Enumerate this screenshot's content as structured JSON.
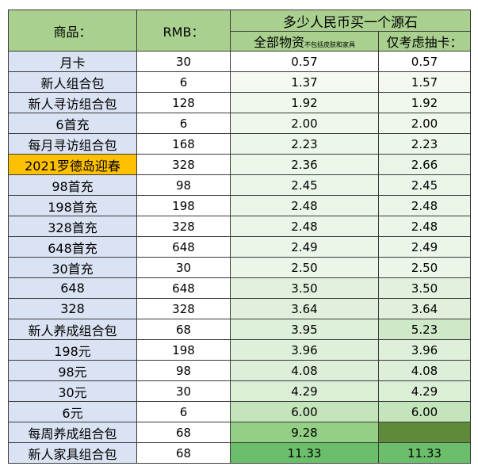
{
  "header": {
    "item_col": "商品：",
    "rmb_col": "RMB：",
    "group_title": "多少人民币买一个源石",
    "col_all": "全部物资",
    "col_all_note": "不包括皮肤和家具",
    "col_draw": "仅考虑抽卡："
  },
  "rows": [
    {
      "name": "月卡",
      "rmb": "30",
      "all": "0.57",
      "draw": "0.57",
      "all_bg": "#ffffff",
      "draw_bg": "#ffffff"
    },
    {
      "name": "新人组合包",
      "rmb": "6",
      "all": "1.37",
      "draw": "1.57",
      "all_bg": "#f4faf2",
      "draw_bg": "#f3f9f1"
    },
    {
      "name": "新人寻访组合包",
      "rmb": "128",
      "all": "1.92",
      "draw": "1.92",
      "all_bg": "#f0f8ed",
      "draw_bg": "#f0f8ed"
    },
    {
      "name": "6首充",
      "rmb": "6",
      "all": "2.00",
      "draw": "2.00",
      "all_bg": "#eff7ec",
      "draw_bg": "#eff7ec"
    },
    {
      "name": "每月寻访组合包",
      "rmb": "168",
      "all": "2.23",
      "draw": "2.23",
      "all_bg": "#edf6ea",
      "draw_bg": "#edf6ea"
    },
    {
      "name": "2021罗德岛迎春",
      "rmb": "328",
      "all": "2.36",
      "draw": "2.66",
      "all_bg": "#ecf6e9",
      "draw_bg": "#eaf5e7",
      "highlight": true
    },
    {
      "name": "98首充",
      "rmb": "98",
      "all": "2.45",
      "draw": "2.45",
      "all_bg": "#ebf5e8",
      "draw_bg": "#ebf5e8"
    },
    {
      "name": "198首充",
      "rmb": "198",
      "all": "2.48",
      "draw": "2.48",
      "all_bg": "#ebf5e8",
      "draw_bg": "#ebf5e8"
    },
    {
      "name": "328首充",
      "rmb": "328",
      "all": "2.48",
      "draw": "2.48",
      "all_bg": "#ebf5e8",
      "draw_bg": "#ebf5e8"
    },
    {
      "name": "648首充",
      "rmb": "648",
      "all": "2.49",
      "draw": "2.49",
      "all_bg": "#ebf5e8",
      "draw_bg": "#ebf5e8"
    },
    {
      "name": "30首充",
      "rmb": "30",
      "all": "2.50",
      "draw": "2.50",
      "all_bg": "#ebf5e8",
      "draw_bg": "#ebf5e8"
    },
    {
      "name": "648",
      "rmb": "648",
      "all": "3.50",
      "draw": "3.50",
      "all_bg": "#e2f1de",
      "draw_bg": "#e2f1de"
    },
    {
      "name": "328",
      "rmb": "328",
      "all": "3.64",
      "draw": "3.64",
      "all_bg": "#e1f0dc",
      "draw_bg": "#e1f0dc"
    },
    {
      "name": "新人养成组合包",
      "rmb": "68",
      "all": "3.95",
      "draw": "5.23",
      "all_bg": "#def0da",
      "draw_bg": "#cfe8c8"
    },
    {
      "name": "198元",
      "rmb": "198",
      "all": "3.96",
      "draw": "3.96",
      "all_bg": "#def0da",
      "draw_bg": "#def0da"
    },
    {
      "name": "98元",
      "rmb": "98",
      "all": "4.08",
      "draw": "4.08",
      "all_bg": "#ddefd8",
      "draw_bg": "#ddefd8"
    },
    {
      "name": "30元",
      "rmb": "30",
      "all": "4.29",
      "draw": "4.29",
      "all_bg": "#dbeed6",
      "draw_bg": "#dbeed6"
    },
    {
      "name": "6元",
      "rmb": "6",
      "all": "6.00",
      "draw": "6.00",
      "all_bg": "#c4e4bb",
      "draw_bg": "#c4e4bb"
    },
    {
      "name": "每周养成组合包",
      "rmb": "68",
      "all": "9.28",
      "draw": "",
      "all_bg": "#94cf86",
      "draw_bg": "#5e8a3a"
    },
    {
      "name": "新人家具组合包",
      "rmb": "68",
      "all": "11.33",
      "draw": "11.33",
      "all_bg": "#6cbf6a",
      "draw_bg": "#6cbf6a"
    }
  ]
}
